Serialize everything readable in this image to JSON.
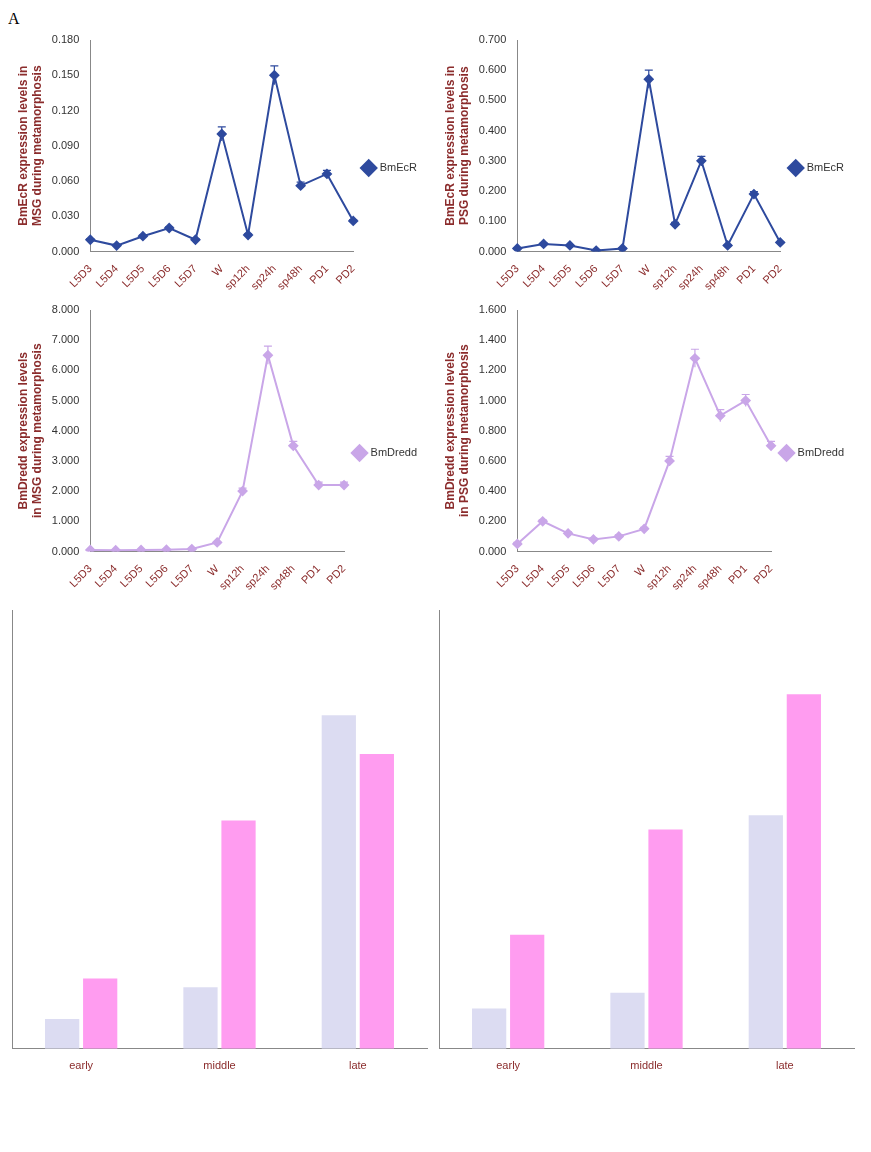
{
  "panel_label": "A",
  "chart_data": [
    {
      "type": "line",
      "y_label": "BmEcR expression levels in MSG during metamorphosis",
      "categories": [
        "L5D3",
        "L5D4",
        "L5D5",
        "L5D6",
        "L5D7",
        "W",
        "sp12h",
        "sp24h",
        "sp48h",
        "PD1",
        "PD2"
      ],
      "series": [
        {
          "name": "BmEcR",
          "color": "#2e4a9e",
          "marker": "diamond",
          "values": [
            0.01,
            0.005,
            0.013,
            0.02,
            0.01,
            0.1,
            0.014,
            0.15,
            0.056,
            0.066,
            0.026
          ],
          "errors": [
            0.001,
            0.001,
            0.001,
            0.001,
            0.001,
            0.006,
            0.001,
            0.008,
            0.003,
            0.003,
            0.001
          ]
        }
      ],
      "ylim": [
        0,
        0.18
      ],
      "yticks": [
        {
          "value": 0,
          "label": "0.000"
        },
        {
          "value": 0.03,
          "label": "0.030"
        },
        {
          "value": 0.06,
          "label": "0.060"
        },
        {
          "value": 0.09,
          "label": "0.090"
        },
        {
          "value": 0.12,
          "label": "0.120"
        },
        {
          "value": 0.15,
          "label": "0.150"
        },
        {
          "value": 0.18,
          "label": "0.180"
        }
      ],
      "legend": "right",
      "grid": false
    },
    {
      "type": "line",
      "y_label": "BmEcR expression levels in PSG during metamorphosis",
      "categories": [
        "L5D3",
        "L5D4",
        "L5D5",
        "L5D6",
        "L5D7",
        "W",
        "sp12h",
        "sp24h",
        "sp48h",
        "PD1",
        "PD2"
      ],
      "series": [
        {
          "name": "BmEcR",
          "color": "#2e4a9e",
          "marker": "diamond",
          "values": [
            0.01,
            0.025,
            0.02,
            0.003,
            0.01,
            0.57,
            0.09,
            0.3,
            0.02,
            0.19,
            0.03
          ],
          "errors": [
            0.002,
            0.003,
            0.002,
            0.001,
            0.002,
            0.03,
            0.006,
            0.015,
            0.002,
            0.008,
            0.003
          ]
        }
      ],
      "ylim": [
        0,
        0.7
      ],
      "yticks": [
        {
          "value": 0,
          "label": "0.000"
        },
        {
          "value": 0.1,
          "label": "0.100"
        },
        {
          "value": 0.2,
          "label": "0.200"
        },
        {
          "value": 0.3,
          "label": "0.300"
        },
        {
          "value": 0.4,
          "label": "0.400"
        },
        {
          "value": 0.5,
          "label": "0.500"
        },
        {
          "value": 0.6,
          "label": "0.600"
        },
        {
          "value": 0.7,
          "label": "0.700"
        }
      ],
      "legend": "right",
      "grid": false
    },
    {
      "type": "line",
      "y_label": "BmDredd expression levels in MSG during metamorphosis",
      "categories": [
        "L5D3",
        "L5D4",
        "L5D5",
        "L5D6",
        "L5D7",
        "W",
        "sp12h",
        "sp24h",
        "sp48h",
        "PD1",
        "PD2"
      ],
      "series": [
        {
          "name": "BmDredd",
          "color": "#c9a6e8",
          "marker": "diamond",
          "values": [
            0.05,
            0.04,
            0.05,
            0.06,
            0.08,
            0.3,
            2.0,
            6.5,
            3.5,
            2.2,
            2.2
          ],
          "errors": [
            0.01,
            0.01,
            0.01,
            0.01,
            0.01,
            0.03,
            0.1,
            0.3,
            0.15,
            0.1,
            0.1
          ]
        }
      ],
      "ylim": [
        0,
        8
      ],
      "yticks": [
        {
          "value": 0,
          "label": "0.000"
        },
        {
          "value": 1,
          "label": "1.000"
        },
        {
          "value": 2,
          "label": "2.000"
        },
        {
          "value": 3,
          "label": "3.000"
        },
        {
          "value": 4,
          "label": "4.000"
        },
        {
          "value": 5,
          "label": "5.000"
        },
        {
          "value": 6,
          "label": "6.000"
        },
        {
          "value": 7,
          "label": "7.000"
        },
        {
          "value": 8,
          "label": "8.000"
        }
      ],
      "legend": "right",
      "grid": false
    },
    {
      "type": "line",
      "y_label": "BmDredd expression levels in PSG during metamorphosis",
      "categories": [
        "L5D3",
        "L5D4",
        "L5D5",
        "L5D6",
        "L5D7",
        "W",
        "sp12h",
        "sp24h",
        "sp48h",
        "PD1",
        "PD2"
      ],
      "series": [
        {
          "name": "BmDredd",
          "color": "#c9a6e8",
          "marker": "diamond",
          "values": [
            0.05,
            0.2,
            0.12,
            0.08,
            0.1,
            0.15,
            0.6,
            1.28,
            0.9,
            1.0,
            0.7
          ],
          "errors": [
            0.01,
            0.01,
            0.01,
            0.01,
            0.01,
            0.01,
            0.03,
            0.06,
            0.04,
            0.04,
            0.03
          ]
        }
      ],
      "ylim": [
        0,
        1.6
      ],
      "yticks": [
        {
          "value": 0,
          "label": "0.000"
        },
        {
          "value": 0.2,
          "label": "0.200"
        },
        {
          "value": 0.4,
          "label": "0.400"
        },
        {
          "value": 0.6,
          "label": "0.600"
        },
        {
          "value": 0.8,
          "label": "0.800"
        },
        {
          "value": 1.0,
          "label": "1.000"
        },
        {
          "value": 1.2,
          "label": "1.200"
        },
        {
          "value": 1.4,
          "label": "1.400"
        },
        {
          "value": 1.6,
          "label": "1.600"
        }
      ],
      "legend": "right",
      "grid": false
    },
    {
      "type": "bar",
      "categories": [
        "early",
        "middle",
        "late"
      ],
      "series": [
        {
          "color": "#dcdcf2",
          "values": [
            0.17,
            0.35,
            1.9
          ]
        },
        {
          "color": "#ff9cf0",
          "values": [
            0.4,
            1.3,
            1.68
          ]
        }
      ],
      "ylim": [
        0,
        2.5
      ],
      "tick_labels": "x",
      "grid": false
    },
    {
      "type": "bar",
      "categories": [
        "early",
        "middle",
        "late"
      ],
      "series": [
        {
          "color": "#dcdcf2",
          "values": [
            0.23,
            0.32,
            1.33
          ]
        },
        {
          "color": "#ff9cf0",
          "values": [
            0.65,
            1.25,
            2.02
          ]
        }
      ],
      "ylim": [
        0,
        2.5
      ],
      "tick_labels": "x",
      "grid": false
    }
  ]
}
